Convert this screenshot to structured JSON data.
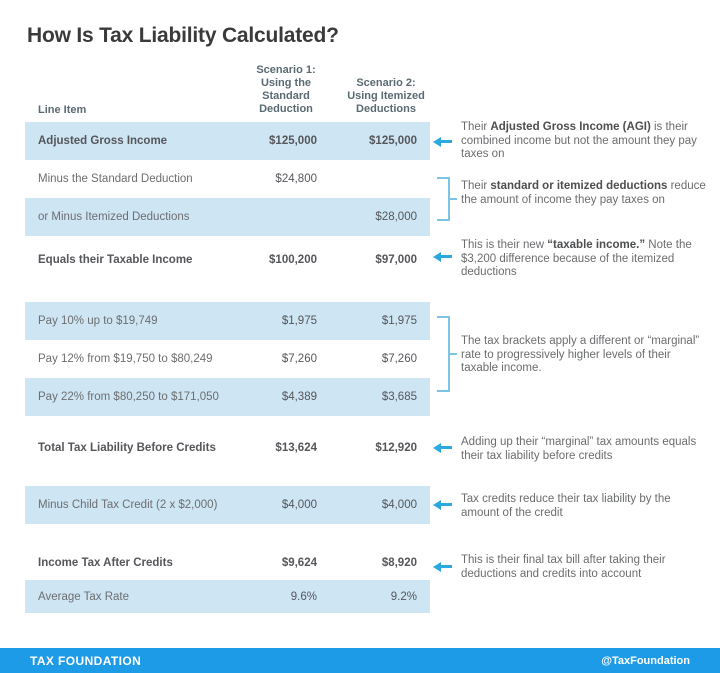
{
  "title": "How Is Tax Liability Calculated?",
  "table": {
    "headers": {
      "line_item": "Line Item",
      "scenario1": "Scenario 1:\nUsing the\nStandard\nDeduction",
      "scenario2": "Scenario 2:\nUsing Itemized\nDeductions"
    },
    "rows": [
      {
        "label": "Adjusted Gross Income",
        "s1": "$125,000",
        "s2": "$125,000",
        "highlight": true,
        "bold": true
      },
      {
        "label": "Minus the Standard Deduction",
        "s1": "$24,800",
        "s2": "",
        "highlight": false,
        "bold": false
      },
      {
        "label": "or Minus Itemized Deductions",
        "s1": "",
        "s2": "$28,000",
        "highlight": true,
        "bold": false
      },
      {
        "label": "Equals their Taxable Income",
        "s1": "$100,200",
        "s2": "$97,000",
        "highlight": false,
        "bold": true
      },
      {
        "label": "Pay 10% up to $19,749",
        "s1": "$1,975",
        "s2": "$1,975",
        "highlight": true,
        "bold": false
      },
      {
        "label": "Pay 12% from $19,750 to $80,249",
        "s1": "$7,260",
        "s2": "$7,260",
        "highlight": false,
        "bold": false
      },
      {
        "label": "Pay 22% from $80,250 to $171,050",
        "s1": "$4,389",
        "s2": "$3,685",
        "highlight": true,
        "bold": false
      },
      {
        "label": "Total Tax Liability Before Credits",
        "s1": "$13,624",
        "s2": "$12,920",
        "highlight": false,
        "bold": true
      },
      {
        "label": "Minus Child Tax Credit (2 x $2,000)",
        "s1": "$4,000",
        "s2": "$4,000",
        "highlight": true,
        "bold": false
      },
      {
        "label": "Income Tax After Credits",
        "s1": "$9,624",
        "s2": "$8,920",
        "highlight": false,
        "bold": true
      },
      {
        "label": "Average Tax Rate",
        "s1": "9.6%",
        "s2": "9.2%",
        "highlight": true,
        "bold": false
      }
    ]
  },
  "annotations": [
    {
      "marker": "arrow",
      "segments": [
        {
          "t": "Their ",
          "b": false
        },
        {
          "t": "Adjusted Gross Income (AGI)",
          "b": true
        },
        {
          "t": " is their combined income but not the amount they pay taxes on",
          "b": false
        }
      ]
    },
    {
      "marker": "bracket",
      "segments": [
        {
          "t": "Their ",
          "b": false
        },
        {
          "t": "standard or itemized deductions",
          "b": true
        },
        {
          "t": " reduce the amount of income they pay taxes on",
          "b": false
        }
      ]
    },
    {
      "marker": "arrow",
      "segments": [
        {
          "t": "This is their new ",
          "b": false
        },
        {
          "t": "“taxable income.”",
          "b": true
        },
        {
          "t": " Note the $3,200 difference because of the itemized deductions",
          "b": false
        }
      ]
    },
    {
      "marker": "bracket",
      "segments": [
        {
          "t": "The tax brackets apply a different or “marginal” rate to progressively higher levels of their taxable income.",
          "b": false
        }
      ]
    },
    {
      "marker": "arrow",
      "segments": [
        {
          "t": "Adding up their “marginal” tax amounts equals their tax liability before credits",
          "b": false
        }
      ]
    },
    {
      "marker": "arrow",
      "segments": [
        {
          "t": "Tax credits reduce their tax liability by the amount of the credit",
          "b": false
        }
      ]
    },
    {
      "marker": "arrow",
      "segments": [
        {
          "t": "This is their final tax bill after taking their deductions and credits into account",
          "b": false
        }
      ]
    }
  ],
  "footer": {
    "left": "TAX FOUNDATION",
    "right": "@TaxFoundation"
  },
  "colors": {
    "row_highlight": "#cee5f4",
    "footer_bar": "#1e9be6",
    "arrow": "#2aa8df",
    "bracket": "#7cc3e4",
    "title_text": "#3a3a3a",
    "body_text": "#6d6e70"
  },
  "chart_data": {
    "type": "table",
    "title": "How Is Tax Liability Calculated?",
    "columns": [
      "Line Item",
      "Scenario 1: Using the Standard Deduction",
      "Scenario 2: Using Itemized Deductions"
    ],
    "rows": [
      [
        "Adjusted Gross Income",
        "$125,000",
        "$125,000"
      ],
      [
        "Minus the Standard Deduction",
        "$24,800",
        ""
      ],
      [
        "or Minus Itemized Deductions",
        "",
        "$28,000"
      ],
      [
        "Equals their Taxable Income",
        "$100,200",
        "$97,000"
      ],
      [
        "Pay 10% up to $19,749",
        "$1,975",
        "$1,975"
      ],
      [
        "Pay 12% from $19,750 to $80,249",
        "$7,260",
        "$7,260"
      ],
      [
        "Pay 22% from $80,250 to $171,050",
        "$4,389",
        "$3,685"
      ],
      [
        "Total Tax Liability Before Credits",
        "$13,624",
        "$12,920"
      ],
      [
        "Minus Child Tax Credit (2 x $2,000)",
        "$4,000",
        "$4,000"
      ],
      [
        "Income Tax After Credits",
        "$9,624",
        "$8,920"
      ],
      [
        "Average Tax Rate",
        "9.6%",
        "9.2%"
      ]
    ]
  }
}
